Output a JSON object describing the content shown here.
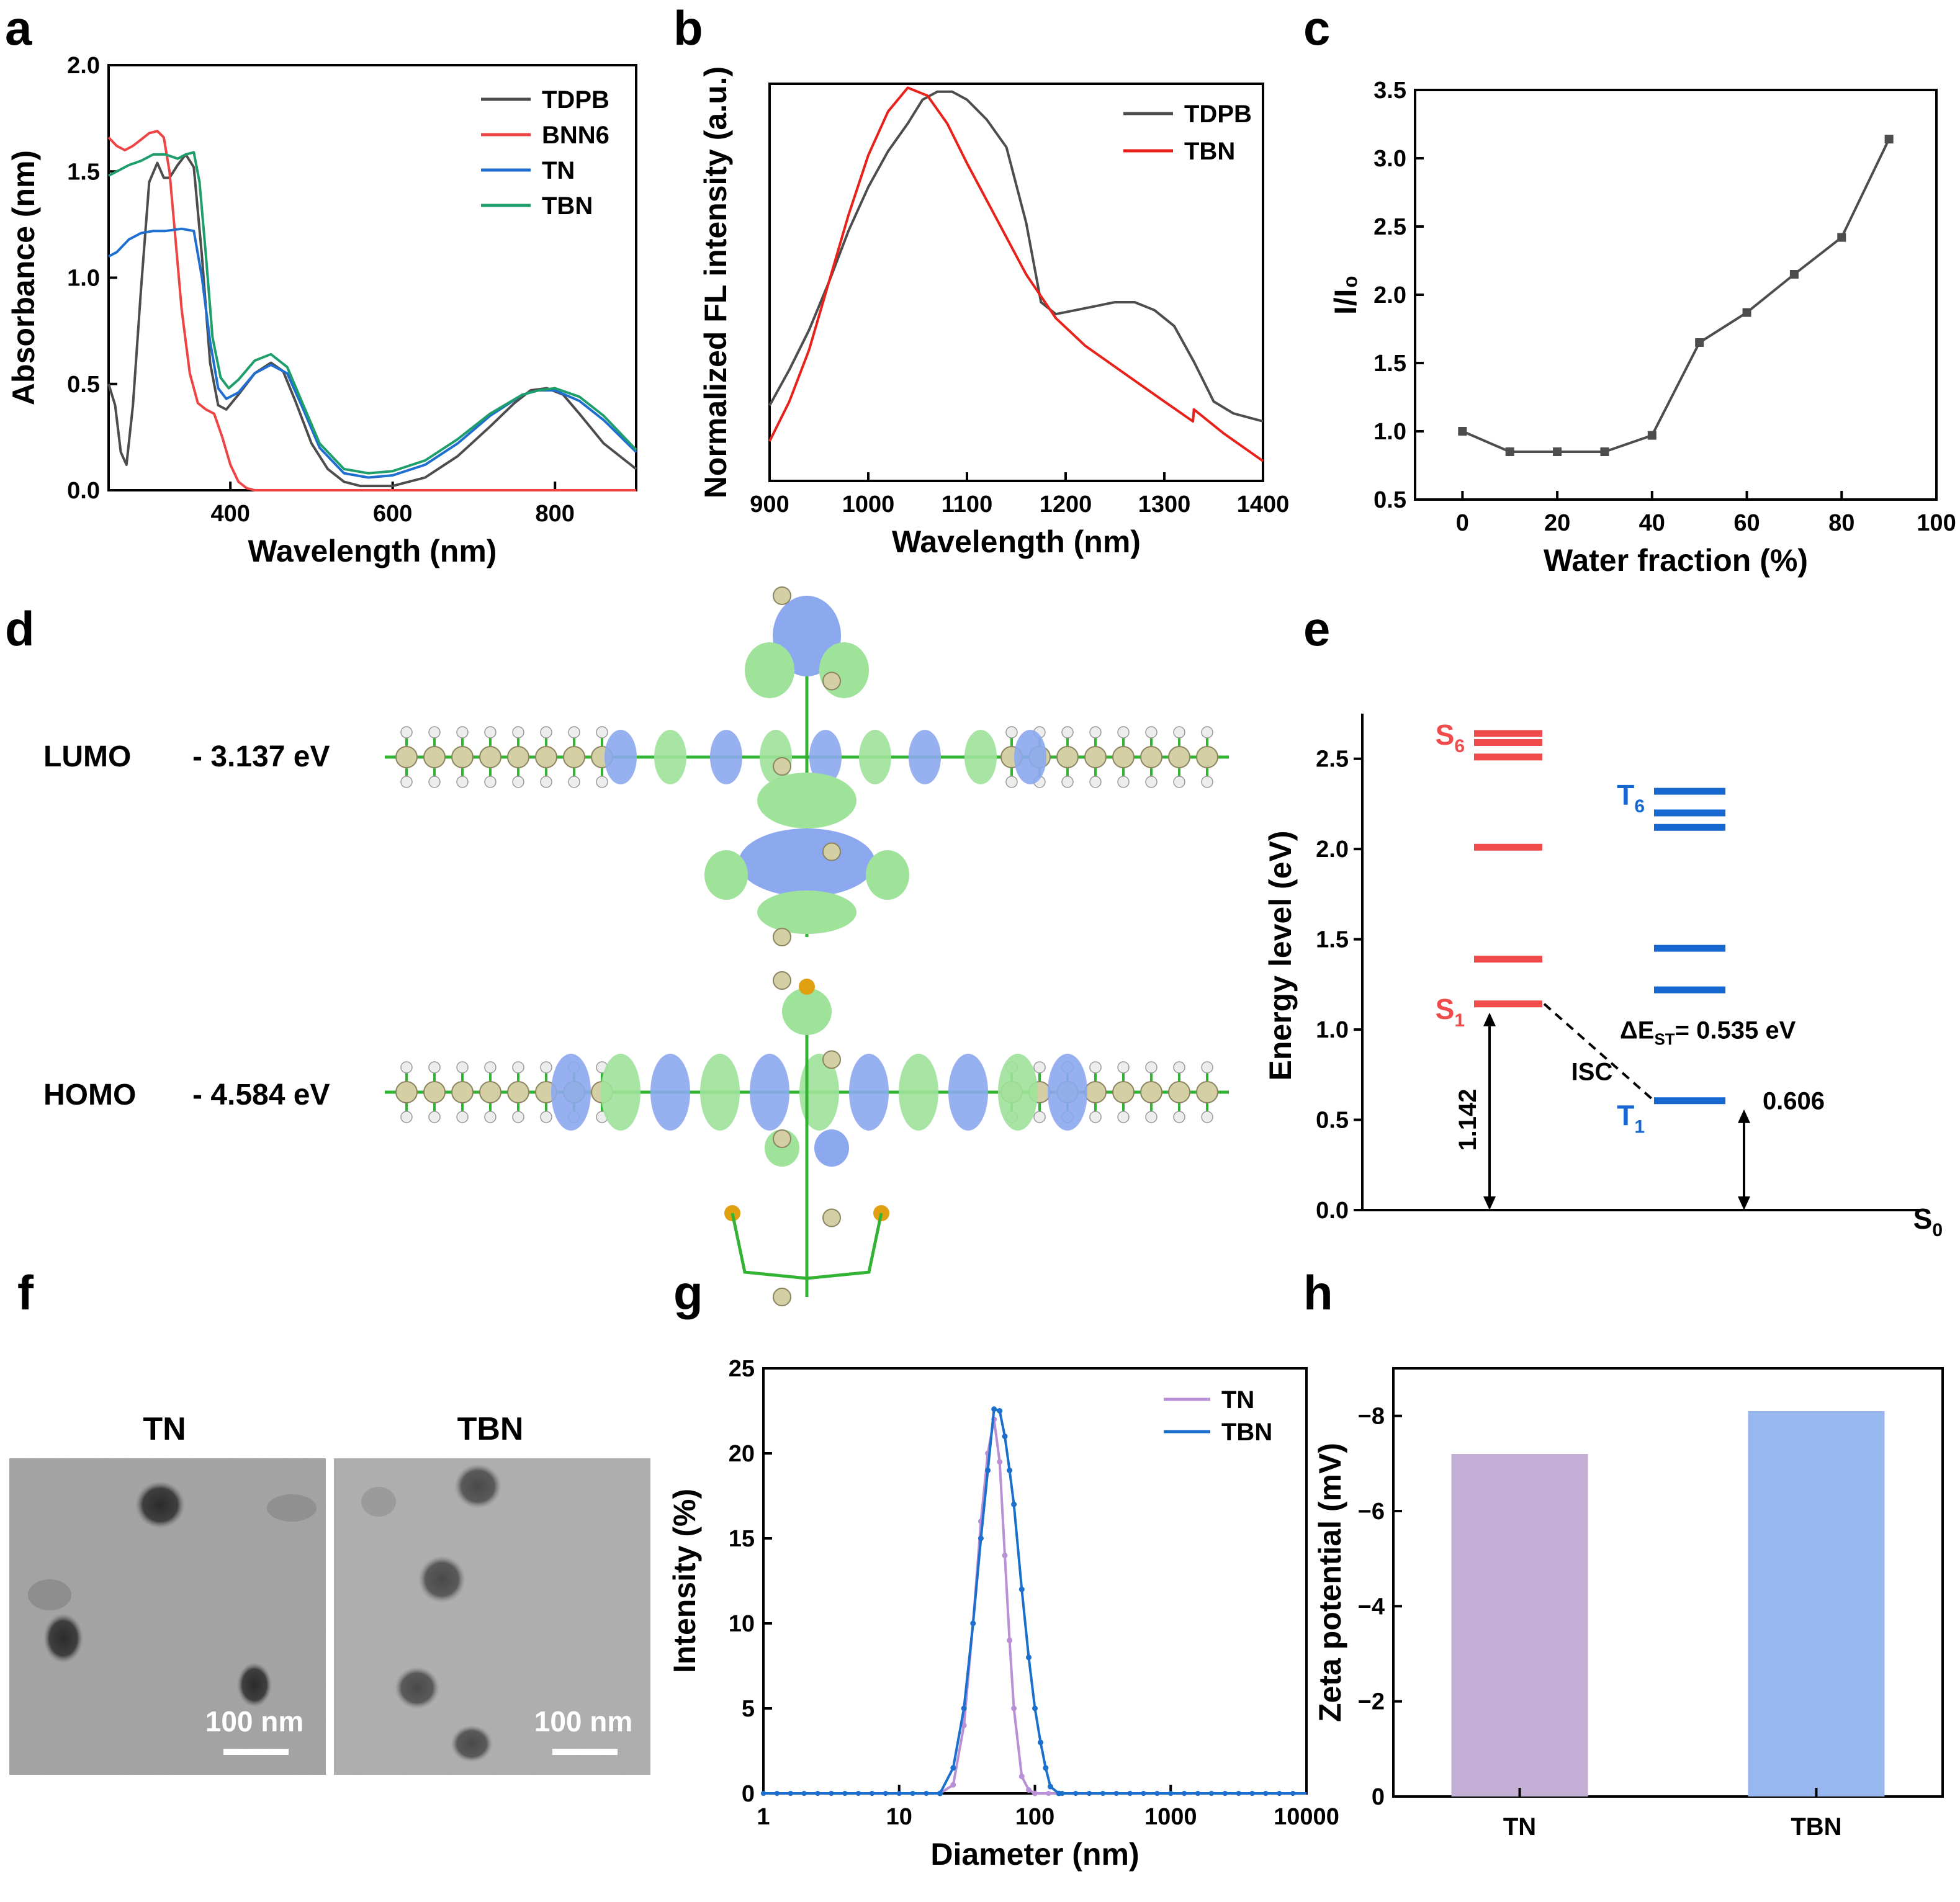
{
  "colors": {
    "tdpb": "#4d4d4d",
    "bnn6": "#ef4444",
    "tn": "#1f6fd1",
    "tbn": "#1e9e6a",
    "red": "#e8211b",
    "singlet": "#ef4b4b",
    "triplet": "#1668d0",
    "dls_tn": "#b98fd6",
    "dls_tbn": "#1b6fcd",
    "bar_tn": "#c3afd6",
    "bar_tbn": "#99b7ef",
    "lobe_blue": "#8ca8ee",
    "lobe_green": "#9fe29a",
    "bond": "#33b333",
    "atom": "#d5cfa6"
  },
  "panels": {
    "a": "a",
    "b": "b",
    "c": "c",
    "d": "d",
    "e": "e",
    "f": "f",
    "g": "g",
    "h": "h"
  },
  "chart_data": [
    {
      "id": "a",
      "type": "line",
      "xlabel": "Wavelength (nm)",
      "ylabel": "Absorbance (nm)",
      "xlim": [
        250,
        900
      ],
      "ylim": [
        0,
        2.0
      ],
      "xticks": [
        400,
        600,
        800
      ],
      "yticks": [
        0.0,
        0.5,
        1.0,
        1.5,
        2.0
      ],
      "legend": "top-right",
      "series": [
        {
          "name": "TDPB",
          "color": "#4d4d4d",
          "x": [
            250,
            258,
            265,
            272,
            280,
            290,
            300,
            310,
            318,
            325,
            335,
            345,
            355,
            365,
            375,
            385,
            395,
            410,
            430,
            450,
            465,
            480,
            500,
            520,
            540,
            560,
            580,
            600,
            640,
            680,
            720,
            750,
            770,
            790,
            810,
            830,
            860,
            900
          ],
          "y": [
            0.5,
            0.4,
            0.18,
            0.12,
            0.4,
            0.95,
            1.45,
            1.54,
            1.47,
            1.47,
            1.53,
            1.58,
            1.52,
            1.1,
            0.6,
            0.4,
            0.38,
            0.45,
            0.55,
            0.6,
            0.56,
            0.42,
            0.22,
            0.1,
            0.04,
            0.02,
            0.02,
            0.02,
            0.06,
            0.16,
            0.3,
            0.41,
            0.47,
            0.48,
            0.45,
            0.36,
            0.22,
            0.1
          ]
        },
        {
          "name": "BNN6",
          "color": "#ef4444",
          "x": [
            250,
            260,
            270,
            280,
            290,
            300,
            310,
            318,
            325,
            332,
            340,
            350,
            360,
            370,
            380,
            390,
            400,
            410,
            420,
            430,
            440,
            460,
            500,
            600,
            700,
            800,
            900
          ],
          "y": [
            1.66,
            1.62,
            1.6,
            1.62,
            1.65,
            1.68,
            1.69,
            1.66,
            1.5,
            1.2,
            0.85,
            0.55,
            0.41,
            0.38,
            0.36,
            0.25,
            0.12,
            0.04,
            0.01,
            0.0,
            0.0,
            0.0,
            0.0,
            0.0,
            0.0,
            0.0,
            0.0
          ]
        },
        {
          "name": "TN",
          "color": "#1f6fd1",
          "x": [
            250,
            260,
            275,
            290,
            305,
            320,
            340,
            355,
            365,
            375,
            385,
            395,
            410,
            430,
            450,
            470,
            490,
            510,
            540,
            570,
            600,
            640,
            680,
            720,
            760,
            780,
            800,
            830,
            860,
            900
          ],
          "y": [
            1.1,
            1.12,
            1.18,
            1.21,
            1.22,
            1.22,
            1.23,
            1.22,
            1.0,
            0.7,
            0.48,
            0.43,
            0.46,
            0.55,
            0.59,
            0.55,
            0.38,
            0.2,
            0.08,
            0.06,
            0.07,
            0.12,
            0.22,
            0.35,
            0.45,
            0.47,
            0.47,
            0.42,
            0.33,
            0.18
          ]
        },
        {
          "name": "TBN",
          "color": "#1e9e6a",
          "x": [
            250,
            260,
            275,
            290,
            305,
            320,
            335,
            345,
            355,
            362,
            370,
            378,
            388,
            398,
            410,
            430,
            450,
            470,
            490,
            510,
            540,
            570,
            600,
            640,
            680,
            720,
            760,
            780,
            800,
            830,
            860,
            900
          ],
          "y": [
            1.48,
            1.5,
            1.53,
            1.55,
            1.58,
            1.58,
            1.56,
            1.58,
            1.59,
            1.45,
            1.1,
            0.72,
            0.53,
            0.48,
            0.52,
            0.61,
            0.64,
            0.58,
            0.4,
            0.22,
            0.1,
            0.08,
            0.09,
            0.14,
            0.24,
            0.36,
            0.45,
            0.47,
            0.48,
            0.44,
            0.35,
            0.19
          ]
        }
      ]
    },
    {
      "id": "b",
      "type": "line",
      "xlabel": "Wavelength (nm)",
      "ylabel": "Normalized FL intensity (a.u.)",
      "xlim": [
        900,
        1400
      ],
      "ylim": [
        0,
        1.0
      ],
      "xticks": [
        900,
        1000,
        1100,
        1200,
        1300,
        1400
      ],
      "yticks": [],
      "legend": "top-right",
      "series": [
        {
          "name": "TDPB",
          "color": "#4d4d4d",
          "x": [
            900,
            920,
            940,
            960,
            980,
            1000,
            1020,
            1040,
            1055,
            1070,
            1085,
            1100,
            1120,
            1140,
            1160,
            1175,
            1190,
            1210,
            1230,
            1250,
            1270,
            1290,
            1310,
            1330,
            1350,
            1370,
            1400
          ],
          "y": [
            0.19,
            0.28,
            0.38,
            0.5,
            0.63,
            0.74,
            0.83,
            0.9,
            0.96,
            0.98,
            0.98,
            0.96,
            0.91,
            0.84,
            0.65,
            0.45,
            0.42,
            0.43,
            0.44,
            0.45,
            0.45,
            0.43,
            0.39,
            0.3,
            0.2,
            0.17,
            0.15
          ]
        },
        {
          "name": "TBN",
          "color": "#e8211b",
          "x": [
            900,
            920,
            940,
            960,
            980,
            1000,
            1020,
            1040,
            1060,
            1080,
            1100,
            1130,
            1160,
            1190,
            1220,
            1260,
            1300,
            1329,
            1330,
            1360,
            1400
          ],
          "y": [
            0.1,
            0.2,
            0.33,
            0.5,
            0.67,
            0.82,
            0.93,
            0.99,
            0.97,
            0.9,
            0.8,
            0.66,
            0.52,
            0.41,
            0.34,
            0.27,
            0.2,
            0.15,
            0.18,
            0.12,
            0.05
          ]
        }
      ]
    },
    {
      "id": "c",
      "type": "line",
      "xlabel": "Water fraction (%)",
      "ylabel": "I/I₀",
      "xlim": [
        -10,
        100
      ],
      "ylim": [
        0.5,
        3.5
      ],
      "xticks": [
        0,
        20,
        40,
        60,
        80,
        100
      ],
      "yticks": [
        0.5,
        1.0,
        1.5,
        2.0,
        2.5,
        3.0,
        3.5
      ],
      "series": [
        {
          "name": "I/I0",
          "color": "#4d4d4d",
          "x": [
            0,
            10,
            20,
            30,
            40,
            50,
            60,
            70,
            80,
            90
          ],
          "y": [
            1.0,
            0.85,
            0.85,
            0.85,
            0.97,
            1.65,
            1.87,
            2.15,
            2.42,
            3.14
          ]
        }
      ]
    },
    {
      "id": "e",
      "type": "energy-levels",
      "ylabel": "Energy level (eV)",
      "ylim": [
        0,
        2.75
      ],
      "yticks": [
        0.0,
        0.5,
        1.0,
        1.5,
        2.0,
        2.5
      ],
      "singlets": [
        1.142,
        1.39,
        2.01,
        2.51,
        2.59,
        2.64
      ],
      "triplets": [
        0.606,
        1.22,
        1.45,
        2.12,
        2.2,
        2.32
      ],
      "labels": {
        "s6": "S",
        "s6_sub": "6",
        "s1": "S",
        "s1_sub": "1",
        "t6": "T",
        "t6_sub": "6",
        "t1": "T",
        "t1_sub": "1",
        "s0": "S",
        "s0_sub": "0",
        "delta_pre": "ΔE",
        "delta_sub": "ST",
        "delta_post": "= 0.535 eV",
        "isc": "ISC",
        "s1_value": "1.142",
        "t1_value": "0.606"
      }
    },
    {
      "id": "g",
      "type": "line",
      "xscale": "log",
      "xlabel": "Diameter (nm)",
      "ylabel": "Intensity (%)",
      "xlim": [
        1,
        10000
      ],
      "ylim": [
        0,
        25
      ],
      "xticks": [
        1,
        10,
        100,
        1000,
        10000
      ],
      "yticks": [
        0,
        5,
        10,
        15,
        20,
        25
      ],
      "legend": "top-right",
      "series": [
        {
          "name": "TN",
          "color": "#b98fd6",
          "x": [
            20,
            25,
            30,
            35,
            40,
            45,
            50,
            55,
            60,
            65,
            70,
            80,
            90,
            100
          ],
          "y": [
            0,
            0.5,
            4,
            10,
            16,
            20,
            22,
            19.5,
            14,
            9,
            5,
            1,
            0.2,
            0
          ]
        },
        {
          "name": "TBN",
          "color": "#1b6fcd",
          "x": [
            20,
            25,
            30,
            35,
            40,
            45,
            50,
            55,
            60,
            65,
            70,
            80,
            90,
            100,
            110,
            120,
            130,
            150
          ],
          "y": [
            0,
            1.5,
            5,
            10,
            15,
            19,
            22.6,
            22.5,
            21,
            19,
            17,
            12,
            8,
            5,
            3,
            1.5,
            0.4,
            0
          ]
        }
      ]
    },
    {
      "id": "h",
      "type": "bar",
      "xlabel": "",
      "ylabel": "Zeta potential (mV)",
      "categories": [
        "TN",
        "TBN"
      ],
      "values": [
        -7.2,
        -8.1
      ],
      "ylim": [
        0,
        -9
      ],
      "yticks": [
        0,
        -2,
        -4,
        -6,
        -8
      ],
      "ytick_labels": [
        "0",
        "−2",
        "−4",
        "−6",
        "−8"
      ]
    }
  ],
  "d": {
    "lumo_label": "LUMO",
    "lumo_energy": "- 3.137 eV",
    "homo_label": "HOMO",
    "homo_energy": "- 4.584 eV"
  },
  "f": {
    "tn_label": "TN",
    "tbn_label": "TBN",
    "scale_tn": "100 nm",
    "scale_tbn": "100 nm"
  }
}
